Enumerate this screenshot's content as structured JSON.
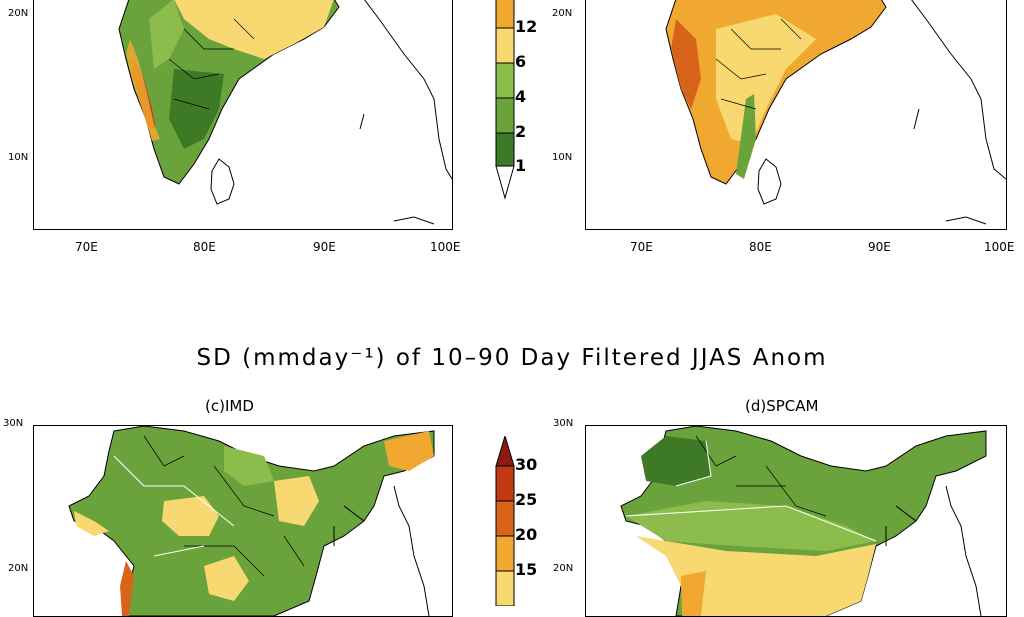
{
  "figure": {
    "main_title": "SD (mmday⁻¹) of 10–90 Day Filtered JJAS Anom"
  },
  "panels": {
    "a": {
      "title": ""
    },
    "b": {
      "title": ""
    },
    "c": {
      "title": "(c)IMD"
    },
    "d": {
      "title": "(d)SPCAM"
    }
  },
  "axes": {
    "lon_ticks": [
      "70E",
      "80E",
      "90E",
      "100E"
    ],
    "lat_top": {
      "t20": "20N",
      "t10": "10N"
    },
    "lat_bottom": {
      "t30": "30N",
      "t20": "20N"
    }
  },
  "colorbar_top": {
    "labels": [
      "12",
      "6",
      "4",
      "2",
      "1"
    ],
    "colors": [
      "#f0a830",
      "#f8d870",
      "#8cbc4c",
      "#6aa23c",
      "#3e7a26",
      "#ffffff"
    ]
  },
  "colorbar_bottom": {
    "labels": [
      "30",
      "25",
      "20",
      "15"
    ],
    "colors": [
      "#8c1a10",
      "#c23a14",
      "#d8641c",
      "#f0a830",
      "#f8d870"
    ]
  },
  "colors": {
    "dark_green": "#3e7a26",
    "mid_green": "#6aa23c",
    "light_green": "#8cbc4c",
    "yellow": "#f8d870",
    "orange": "#f0a830",
    "dark_orange": "#d8641c",
    "red": "#c23a14"
  }
}
